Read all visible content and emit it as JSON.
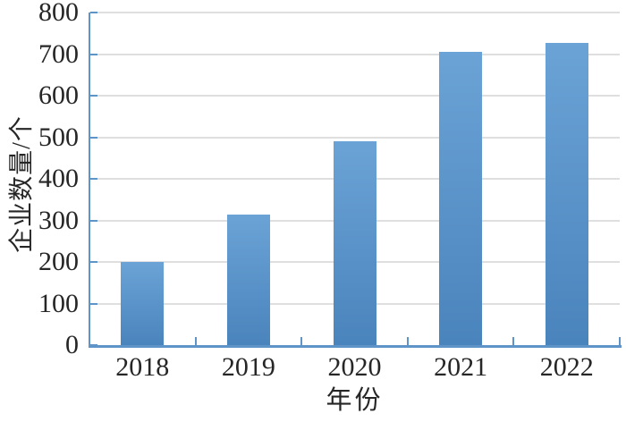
{
  "chart_data": {
    "type": "bar",
    "title": "",
    "categories": [
      "2018",
      "2019",
      "2020",
      "2021",
      "2022"
    ],
    "values": [
      200,
      313,
      490,
      705,
      727
    ],
    "xlabel": "年份",
    "ylabel": "企业数量/个",
    "ylim": [
      0,
      800
    ],
    "yticks": [
      0,
      100,
      200,
      300,
      400,
      500,
      600,
      700,
      800
    ],
    "grid": true,
    "legend_position": "none",
    "colors": {
      "bar_top": "#6ba3d6",
      "bar_bottom": "#4a84bc",
      "axis": "#5f94c8",
      "gridline": "#d9d9d9",
      "text": "#262626",
      "background": "#ffffff"
    }
  }
}
